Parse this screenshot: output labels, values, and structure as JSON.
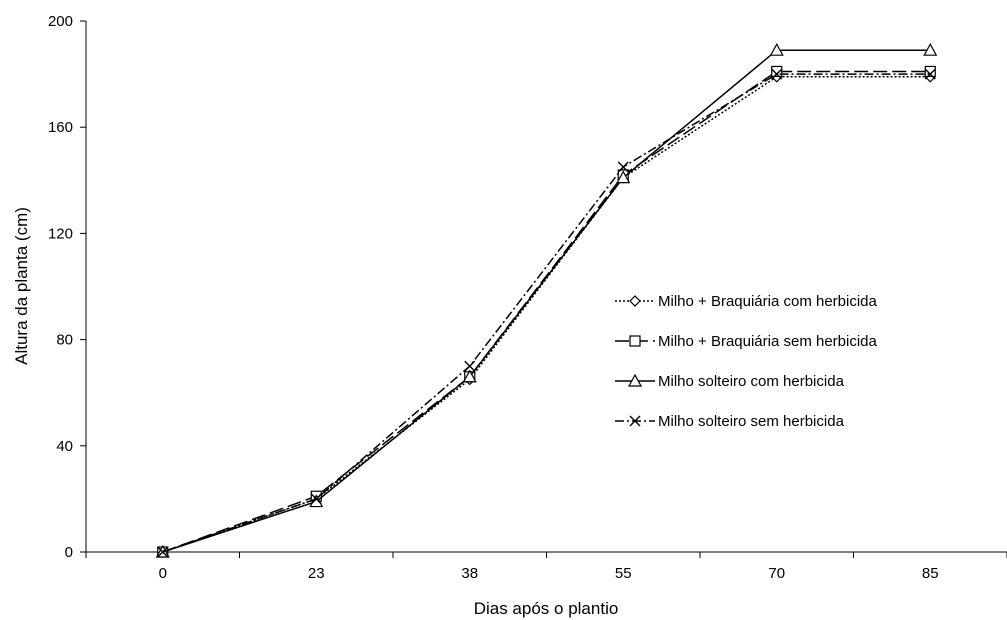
{
  "chart_data": {
    "type": "line",
    "xlabel": "Dias após o plantio",
    "ylabel": "Altura da planta (cm)",
    "categories": [
      "0",
      "23",
      "38",
      "55",
      "70",
      "85"
    ],
    "ylim": [
      0,
      200
    ],
    "yticks": [
      "0",
      "40",
      "80",
      "120",
      "160",
      "200"
    ],
    "grid": false,
    "legend_position": "right",
    "series": [
      {
        "name": "Milho + Braquiária com herbicida",
        "marker": "diamond",
        "dash": "2,2",
        "values": [
          0,
          20,
          65,
          141,
          179,
          179
        ]
      },
      {
        "name": "Milho + Braquiária sem herbicida",
        "marker": "square",
        "dash": "14,5",
        "values": [
          0,
          21,
          66,
          142,
          181,
          181
        ]
      },
      {
        "name": "Milho solteiro com herbicida",
        "marker": "triangle",
        "dash": "",
        "values": [
          0,
          19,
          66,
          141,
          189,
          189
        ]
      },
      {
        "name": "Milho solteiro sem herbicida",
        "marker": "x",
        "dash": "9,3,2,3",
        "values": [
          0,
          20,
          70,
          145,
          180,
          180
        ]
      }
    ]
  }
}
